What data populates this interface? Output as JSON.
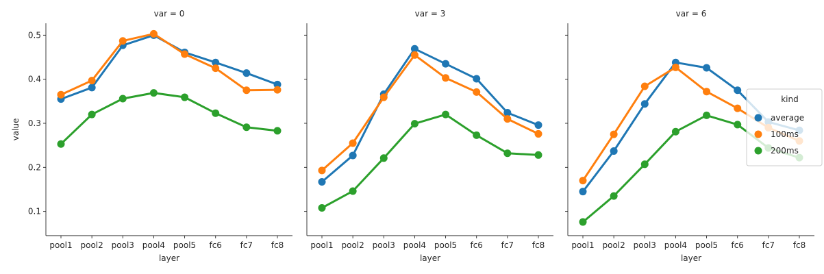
{
  "chart_data": {
    "type": "line",
    "ylabel": "value",
    "xlabel": "layer",
    "ylim": [
      0.045,
      0.527
    ],
    "yticks": [
      0.1,
      0.2,
      0.3,
      0.4,
      0.5
    ],
    "categories": [
      "pool1",
      "pool2",
      "pool3",
      "pool4",
      "pool5",
      "fc6",
      "fc7",
      "fc8"
    ],
    "legend": {
      "title": "kind",
      "placement": "right",
      "entries": [
        "average",
        "100ms",
        "200ms"
      ]
    },
    "colors": {
      "average": "#1f77b4",
      "100ms": "#ff7f0e",
      "200ms": "#2ca02c"
    },
    "panels": [
      {
        "title": "var = 0",
        "series": [
          {
            "name": "average",
            "values": [
              0.355,
              0.381,
              0.477,
              0.5,
              0.461,
              0.438,
              0.414,
              0.388
            ]
          },
          {
            "name": "100ms",
            "values": [
              0.365,
              0.397,
              0.487,
              0.503,
              0.457,
              0.425,
              0.375,
              0.376
            ]
          },
          {
            "name": "200ms",
            "values": [
              0.253,
              0.32,
              0.356,
              0.369,
              0.359,
              0.323,
              0.291,
              0.283
            ]
          }
        ]
      },
      {
        "title": "var = 3",
        "series": [
          {
            "name": "average",
            "values": [
              0.167,
              0.227,
              0.366,
              0.469,
              0.435,
              0.401,
              0.324,
              0.296
            ]
          },
          {
            "name": "100ms",
            "values": [
              0.193,
              0.255,
              0.359,
              0.455,
              0.403,
              0.371,
              0.31,
              0.276
            ]
          },
          {
            "name": "200ms",
            "values": [
              0.108,
              0.146,
              0.221,
              0.299,
              0.32,
              0.273,
              0.232,
              0.228
            ]
          }
        ]
      },
      {
        "title": "var = 6",
        "series": [
          {
            "name": "average",
            "values": [
              0.145,
              0.237,
              0.344,
              0.438,
              0.426,
              0.375,
              0.303,
              0.284
            ]
          },
          {
            "name": "100ms",
            "values": [
              0.17,
              0.275,
              0.384,
              0.427,
              0.372,
              0.334,
              0.29,
              0.26
            ]
          },
          {
            "name": "200ms",
            "values": [
              0.076,
              0.135,
              0.207,
              0.281,
              0.318,
              0.297,
              0.244,
              0.222
            ]
          }
        ]
      }
    ]
  }
}
